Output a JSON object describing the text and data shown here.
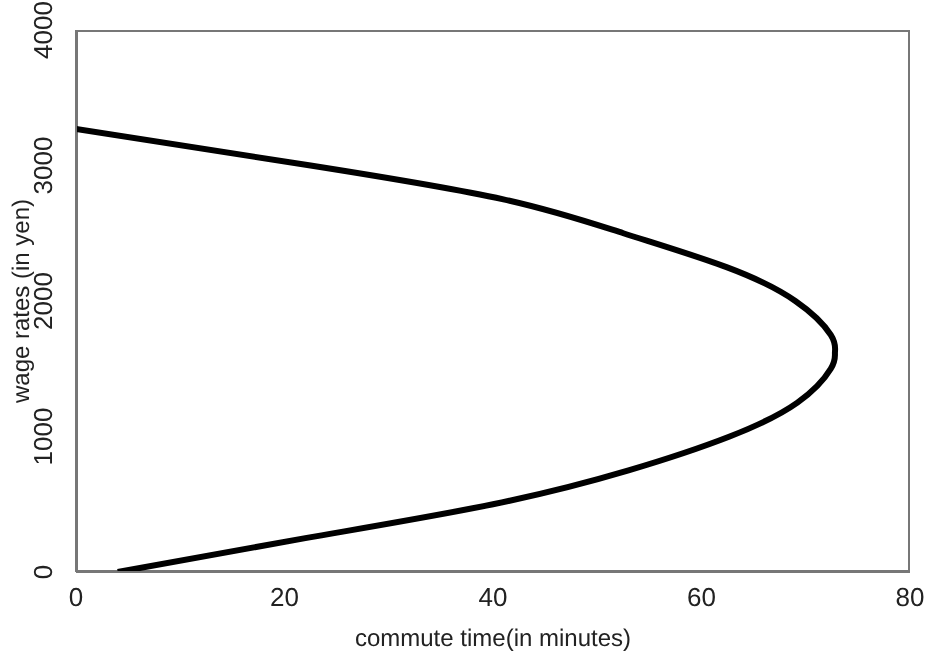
{
  "chart_data": {
    "type": "line",
    "xlabel": "commute time(in minutes)",
    "ylabel": "wage rates (in yen)",
    "x": [
      4,
      22,
      40,
      53,
      62.7,
      69.2,
      72.4,
      72.8,
      72.4,
      69,
      62.4,
      52.5,
      41,
      22.5,
      0
    ],
    "series": [
      {
        "color": "#000000",
        "values": [
          0,
          250,
          500,
          750,
          1000,
          1250,
          1500,
          1620,
          1750,
          2000,
          2250,
          2500,
          2750,
          3000,
          3270
        ]
      }
    ],
    "xlim": [
      0,
      80
    ],
    "xticks": [
      0,
      20,
      40,
      60,
      80
    ],
    "ylim": [
      0,
      4000
    ],
    "yticks": [
      0,
      1000,
      2000,
      3000,
      4000
    ],
    "grid": false,
    "legend": false,
    "marker": "none",
    "line_style": "solid"
  }
}
